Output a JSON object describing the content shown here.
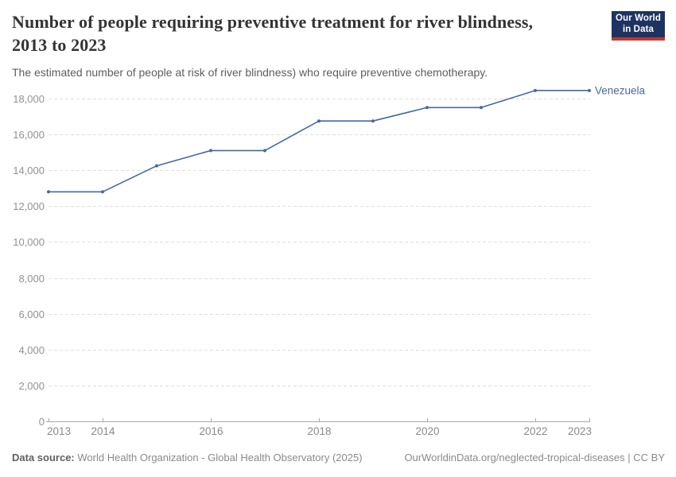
{
  "header": {
    "title": "Number of people requiring preventive treatment for river blindness, 2013 to 2023",
    "subtitle": "The estimated number of people at risk of river blindness) who require preventive chemotherapy.",
    "logo": {
      "line1": "Our World",
      "line2": "in Data",
      "bg_color": "#1d3462",
      "accent_color": "#bc3a30"
    }
  },
  "chart_data": {
    "type": "line",
    "title": "Number of people requiring preventive treatment for river blindness, 2013 to 2023",
    "x": [
      2013,
      2014,
      2015,
      2016,
      2017,
      2018,
      2019,
      2020,
      2021,
      2022,
      2023
    ],
    "series": [
      {
        "name": "Venezuela",
        "color": "#4868a0",
        "values": [
          12800,
          12800,
          14250,
          15100,
          15100,
          16750,
          16750,
          17500,
          17500,
          18450,
          18450
        ]
      }
    ],
    "x_ticks": [
      2013,
      2014,
      2016,
      2018,
      2020,
      2022,
      2023
    ],
    "y_ticks": [
      0,
      2000,
      4000,
      6000,
      8000,
      10000,
      12000,
      14000,
      16000,
      18000
    ],
    "ylim": [
      0,
      18000
    ],
    "xlabel": "",
    "ylabel": "",
    "grid": "horizontal-dashed",
    "legend_position": "end-of-line-label",
    "style": {
      "gridline_color": "#dedede",
      "axis_color": "#a8a8a8",
      "y_tick_label_color": "#929292",
      "x_tick_label_color": "#8a8a8a"
    }
  },
  "footer": {
    "datasource_label": "Data source:",
    "datasource_text": "World Health Organization - Global Health Observatory (2025)",
    "license_text": "OurWorldinData.org/neglected-tropical-diseases | CC BY"
  }
}
